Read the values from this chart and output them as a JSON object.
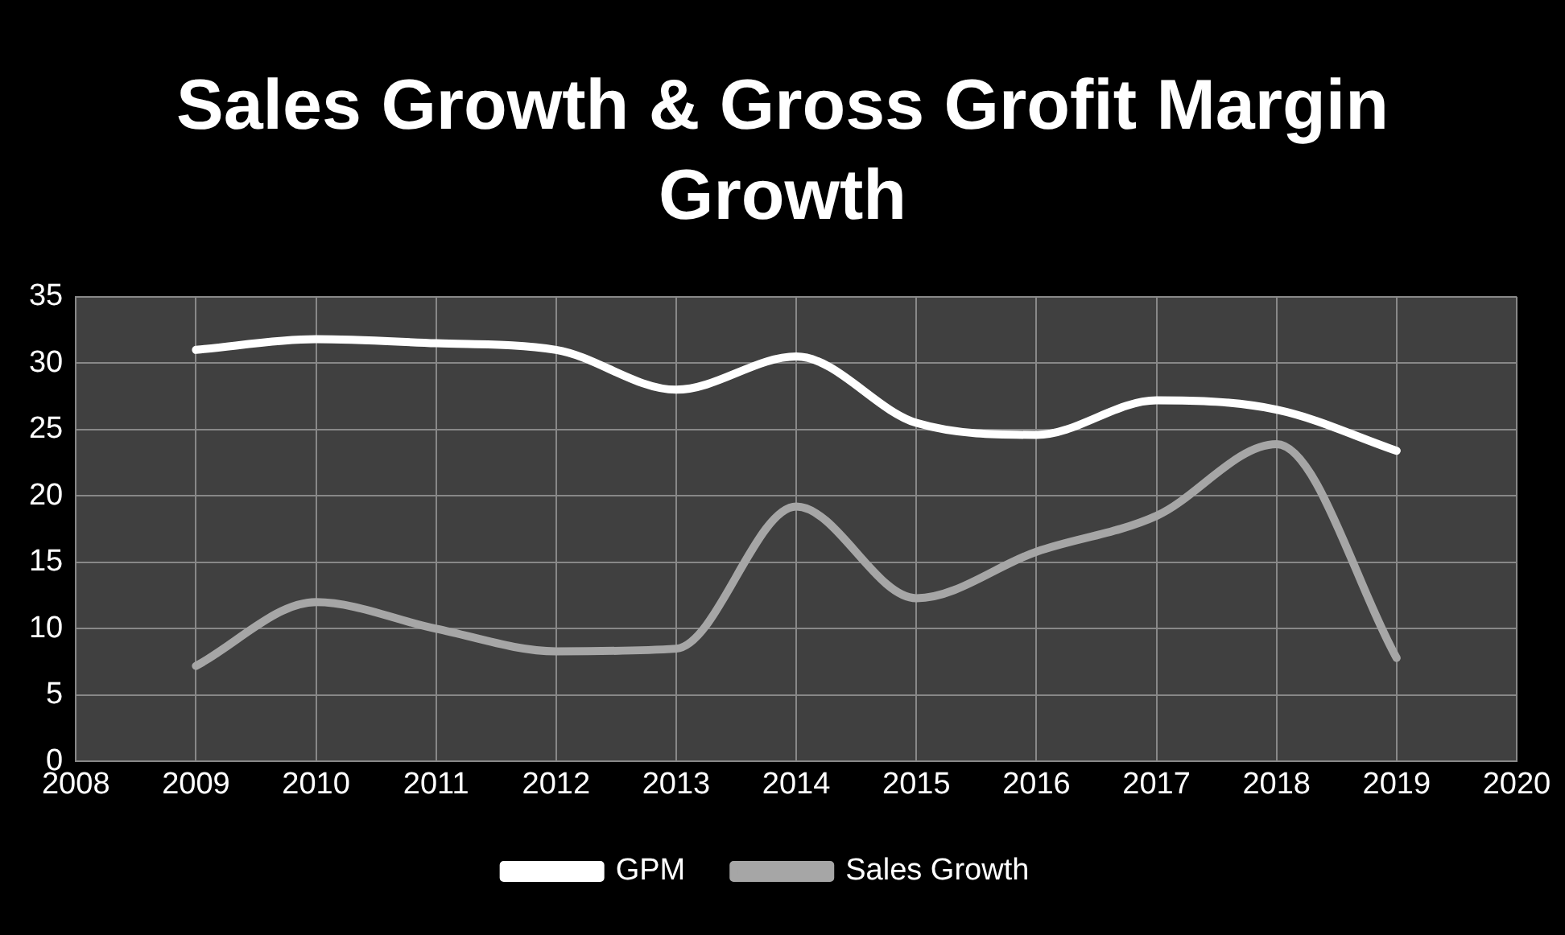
{
  "chart_data": {
    "type": "line",
    "title": "Sales Growth & Gross Grofit Margin Growth",
    "x": [
      2009,
      2010,
      2011,
      2012,
      2013,
      2014,
      2015,
      2016,
      2017,
      2018,
      2019
    ],
    "series": [
      {
        "name": "GPM",
        "color": "#ffffff",
        "values": [
          31,
          31.8,
          31.5,
          31,
          28,
          30.5,
          25.5,
          24.6,
          27.2,
          26.5,
          23.4
        ]
      },
      {
        "name": "Sales Growth",
        "color": "#a6a6a6",
        "values": [
          7.2,
          12,
          10,
          8.3,
          8.5,
          19.2,
          12.3,
          15.8,
          18.5,
          23.9,
          7.8
        ]
      }
    ],
    "xlim": [
      2008,
      2020
    ],
    "xticks": [
      2008,
      2009,
      2010,
      2011,
      2012,
      2013,
      2014,
      2015,
      2016,
      2017,
      2018,
      2019,
      2020
    ],
    "ylim": [
      0,
      35
    ],
    "yticks": [
      0,
      5,
      10,
      15,
      20,
      25,
      30,
      35
    ],
    "grid": true,
    "legend": "bottom",
    "marker": "none",
    "line_style": "solid"
  }
}
